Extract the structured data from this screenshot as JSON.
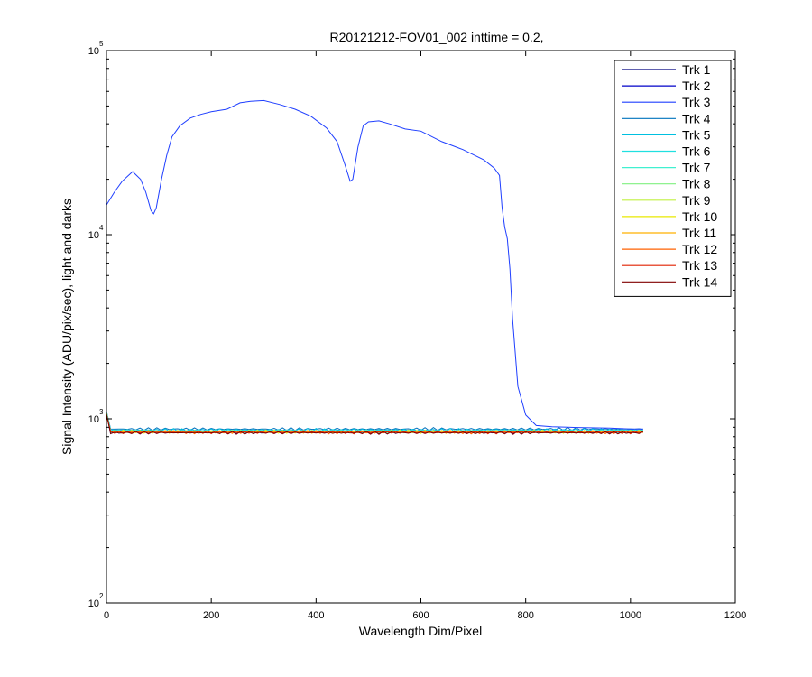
{
  "chart_data": {
    "type": "line",
    "title": "R20121212-FOV01_002 inttime = 0.2,",
    "xlabel": "Wavelength Dim/Pixel",
    "ylabel": "Signal Intensity (ADU/pix/sec), light and darks",
    "xlim": [
      0,
      1200
    ],
    "ylim": [
      100,
      100000
    ],
    "yscale": "log",
    "xticks": [
      0,
      200,
      400,
      600,
      800,
      1000,
      1200
    ],
    "yticks": [
      {
        "base": "10",
        "exp": "2",
        "value": 100
      },
      {
        "base": "10",
        "exp": "3",
        "value": 1000
      },
      {
        "base": "10",
        "exp": "4",
        "value": 10000
      },
      {
        "base": "10",
        "exp": "5",
        "value": 100000
      }
    ],
    "grid": false,
    "legend_position": "top-right",
    "series": [
      {
        "name": "Trk 1",
        "color": "#00007f",
        "level": 850,
        "points": []
      },
      {
        "name": "Trk 2",
        "color": "#0000c8",
        "level": 845,
        "points": []
      },
      {
        "name": "Trk 3",
        "color": "#1f3fff",
        "level": 900,
        "points": [
          [
            0,
            14500
          ],
          [
            15,
            17000
          ],
          [
            30,
            19500
          ],
          [
            50,
            22000
          ],
          [
            65,
            20000
          ],
          [
            75,
            17000
          ],
          [
            85,
            13500
          ],
          [
            90,
            13000
          ],
          [
            95,
            14000
          ],
          [
            105,
            20000
          ],
          [
            115,
            27000
          ],
          [
            125,
            34000
          ],
          [
            140,
            39000
          ],
          [
            160,
            43000
          ],
          [
            180,
            45000
          ],
          [
            200,
            46500
          ],
          [
            230,
            48000
          ],
          [
            255,
            52000
          ],
          [
            275,
            53000
          ],
          [
            300,
            53500
          ],
          [
            330,
            51000
          ],
          [
            360,
            48000
          ],
          [
            390,
            44000
          ],
          [
            420,
            38000
          ],
          [
            440,
            32000
          ],
          [
            455,
            24000
          ],
          [
            465,
            19500
          ],
          [
            470,
            20000
          ],
          [
            480,
            30000
          ],
          [
            490,
            39000
          ],
          [
            500,
            41000
          ],
          [
            520,
            41500
          ],
          [
            540,
            40000
          ],
          [
            570,
            37500
          ],
          [
            600,
            36500
          ],
          [
            640,
            32000
          ],
          [
            680,
            29000
          ],
          [
            720,
            25500
          ],
          [
            740,
            23000
          ],
          [
            750,
            21000
          ],
          [
            755,
            14000
          ],
          [
            760,
            11000
          ],
          [
            765,
            9500
          ],
          [
            770,
            6500
          ],
          [
            775,
            3500
          ],
          [
            785,
            1500
          ],
          [
            800,
            1050
          ],
          [
            820,
            920
          ],
          [
            850,
            905
          ],
          [
            880,
            900
          ],
          [
            910,
            895
          ],
          [
            960,
            890
          ],
          [
            1000,
            880
          ],
          [
            1024,
            880
          ]
        ]
      },
      {
        "name": "Trk 4",
        "color": "#0072bd",
        "level": 880,
        "points": []
      },
      {
        "name": "Trk 5",
        "color": "#00c0e0",
        "level": 870,
        "points": []
      },
      {
        "name": "Trk 6",
        "color": "#20e0e0",
        "level": 860,
        "points": []
      },
      {
        "name": "Trk 7",
        "color": "#40f0d0",
        "level": 860,
        "points": []
      },
      {
        "name": "Trk 8",
        "color": "#80f080",
        "level": 855,
        "points": []
      },
      {
        "name": "Trk 9",
        "color": "#c0f040",
        "level": 855,
        "points": []
      },
      {
        "name": "Trk 10",
        "color": "#e8e800",
        "level": 850,
        "points": []
      },
      {
        "name": "Trk 11",
        "color": "#ffb000",
        "level": 850,
        "points": []
      },
      {
        "name": "Trk 12",
        "color": "#ff6000",
        "level": 845,
        "points": []
      },
      {
        "name": "Trk 13",
        "color": "#e02000",
        "level": 845,
        "points": []
      },
      {
        "name": "Trk 14",
        "color": "#800000",
        "level": 840,
        "points": []
      }
    ]
  }
}
